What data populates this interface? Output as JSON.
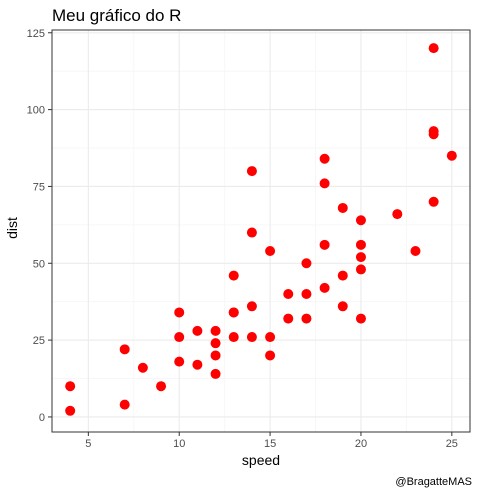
{
  "chart_data": {
    "type": "scatter",
    "title": "Meu gráfico do R",
    "xlabel": "speed",
    "ylabel": "dist",
    "caption": "@BragatteMAS",
    "xlim": [
      3,
      26
    ],
    "ylim": [
      -4.9,
      125.9
    ],
    "xticks": [
      5,
      10,
      15,
      20,
      25
    ],
    "yticks": [
      0,
      25,
      50,
      75,
      100,
      125
    ],
    "grid": true,
    "point_color": "#ff0000",
    "panel_border_color": "#333333",
    "grid_major_color": "#ebebeb",
    "grid_minor_color": "#f5f5f5",
    "x": [
      4,
      4,
      7,
      7,
      8,
      9,
      10,
      10,
      10,
      11,
      11,
      12,
      12,
      12,
      12,
      13,
      13,
      13,
      13,
      14,
      14,
      14,
      14,
      15,
      15,
      15,
      16,
      16,
      17,
      17,
      17,
      18,
      18,
      18,
      18,
      19,
      19,
      19,
      20,
      20,
      20,
      20,
      20,
      22,
      23,
      24,
      24,
      24,
      24,
      25
    ],
    "y": [
      2,
      10,
      4,
      22,
      16,
      10,
      18,
      26,
      34,
      17,
      28,
      14,
      20,
      24,
      28,
      26,
      34,
      34,
      46,
      26,
      36,
      60,
      80,
      20,
      26,
      54,
      32,
      40,
      32,
      40,
      50,
      42,
      56,
      76,
      84,
      36,
      46,
      68,
      32,
      48,
      52,
      56,
      64,
      66,
      54,
      70,
      92,
      93,
      120,
      85
    ]
  }
}
